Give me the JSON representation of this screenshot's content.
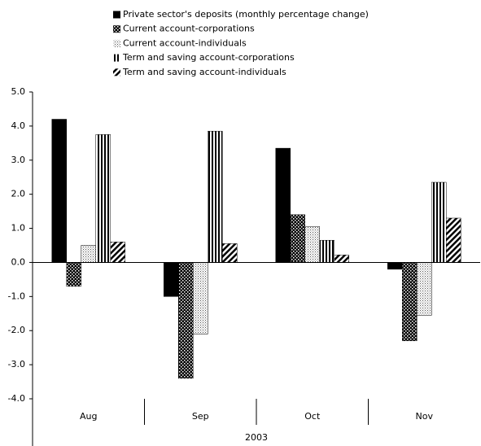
{
  "chart_data": {
    "type": "bar",
    "categories": [
      "Aug",
      "Sep",
      "Oct",
      "Nov"
    ],
    "group_label": "2003",
    "series": [
      {
        "name": "Private sector's deposits (monthly percentage change)",
        "color": "#000000",
        "pattern": "solid",
        "values": [
          4.2,
          -1.0,
          3.35,
          -0.2
        ]
      },
      {
        "name": " Current account-corporations",
        "color": "#000000",
        "pattern": "checker",
        "values": [
          -0.7,
          -3.4,
          1.4,
          -2.3
        ]
      },
      {
        "name": "Current account-individuals",
        "color": "#000000",
        "pattern": "dots",
        "values": [
          0.5,
          -2.1,
          1.05,
          -1.55
        ]
      },
      {
        "name": "Term and saving account-corporations",
        "color": "#000000",
        "pattern": "vlines",
        "values": [
          3.75,
          3.85,
          0.65,
          2.35
        ]
      },
      {
        "name": "Term and saving account-individuals",
        "color": "#000000",
        "pattern": "diagonal",
        "values": [
          0.6,
          0.55,
          0.22,
          1.3
        ]
      }
    ],
    "ylim": [
      -4,
      5
    ],
    "yticks": [
      {
        "value": 5,
        "label": "5.0"
      },
      {
        "value": 4,
        "label": "4.0"
      },
      {
        "value": 3,
        "label": "3.0"
      },
      {
        "value": 2,
        "label": "2.0"
      },
      {
        "value": 1,
        "label": "1.0"
      },
      {
        "value": 0,
        "label": "0.0"
      },
      {
        "value": -1,
        "label": "-1.0"
      },
      {
        "value": -2,
        "label": "-2.0"
      },
      {
        "value": -3,
        "label": "-3.0"
      },
      {
        "value": -4,
        "label": "-4.0"
      }
    ],
    "legend": "top"
  }
}
